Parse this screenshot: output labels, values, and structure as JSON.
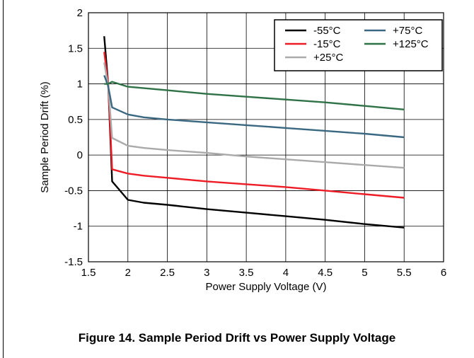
{
  "caption": "Figure 14. Sample Period Drift vs Power Supply Voltage",
  "chart_data": {
    "type": "line",
    "title": "",
    "xlabel": "Power Supply Voltage (V)",
    "ylabel": "Sample Period Drift (%)",
    "xlim": [
      1.5,
      6
    ],
    "ylim": [
      -1.5,
      2
    ],
    "xticks": [
      1.5,
      2,
      2.5,
      3,
      3.5,
      4,
      4.5,
      5,
      5.5,
      6
    ],
    "xtick_labels": [
      "1.5",
      "2",
      "2.5",
      "3",
      "3.5",
      "4",
      "4.5",
      "5",
      "5.5",
      "6"
    ],
    "yticks": [
      -1.5,
      -1,
      -0.5,
      0,
      0.5,
      1,
      1.5,
      2
    ],
    "ytick_labels": [
      "-1.5",
      "-1",
      "-0.5",
      "0",
      "0.5",
      "1",
      "1.5",
      "2"
    ],
    "grid": true,
    "legend_position": "top-right",
    "series": [
      {
        "name": "-55°C",
        "color": "#000000",
        "x": [
          1.7,
          1.75,
          1.8,
          2.0,
          2.2,
          2.5,
          3.0,
          3.5,
          4.0,
          4.5,
          5.0,
          5.5
        ],
        "y": [
          1.67,
          1.0,
          -0.37,
          -0.63,
          -0.67,
          -0.7,
          -0.76,
          -0.81,
          -0.86,
          -0.91,
          -0.97,
          -1.02
        ]
      },
      {
        "name": "-15°C",
        "color": "#ee1c25",
        "x": [
          1.7,
          1.75,
          1.8,
          2.0,
          2.2,
          2.5,
          3.0,
          3.5,
          4.0,
          4.5,
          5.0,
          5.5
        ],
        "y": [
          1.45,
          1.0,
          -0.2,
          -0.26,
          -0.29,
          -0.32,
          -0.37,
          -0.41,
          -0.45,
          -0.5,
          -0.55,
          -0.6
        ]
      },
      {
        "name": "+25°C",
        "color": "#aaaaaa",
        "x": [
          1.7,
          1.75,
          1.8,
          2.0,
          2.2,
          2.5,
          3.0,
          3.5,
          4.0,
          4.5,
          5.0,
          5.5
        ],
        "y": [
          1.3,
          0.98,
          0.24,
          0.13,
          0.1,
          0.07,
          0.03,
          -0.02,
          -0.06,
          -0.1,
          -0.14,
          -0.18
        ]
      },
      {
        "name": "+75°C",
        "color": "#3a6882",
        "x": [
          1.7,
          1.75,
          1.8,
          2.0,
          2.2,
          2.5,
          3.0,
          3.5,
          4.0,
          4.5,
          5.0,
          5.5
        ],
        "y": [
          1.12,
          0.97,
          0.67,
          0.57,
          0.53,
          0.5,
          0.46,
          0.42,
          0.38,
          0.34,
          0.3,
          0.25
        ]
      },
      {
        "name": "+125°C",
        "color": "#2f7246",
        "x": [
          1.7,
          1.75,
          1.8,
          2.0,
          2.2,
          2.5,
          3.0,
          3.5,
          4.0,
          4.5,
          5.0,
          5.5
        ],
        "y": [
          1.0,
          1.0,
          1.03,
          0.96,
          0.94,
          0.91,
          0.86,
          0.82,
          0.78,
          0.74,
          0.69,
          0.64
        ]
      }
    ],
    "legend_order": [
      "-55°C",
      "+75°C",
      "-15°C",
      "+125°C",
      "+25°C"
    ]
  }
}
